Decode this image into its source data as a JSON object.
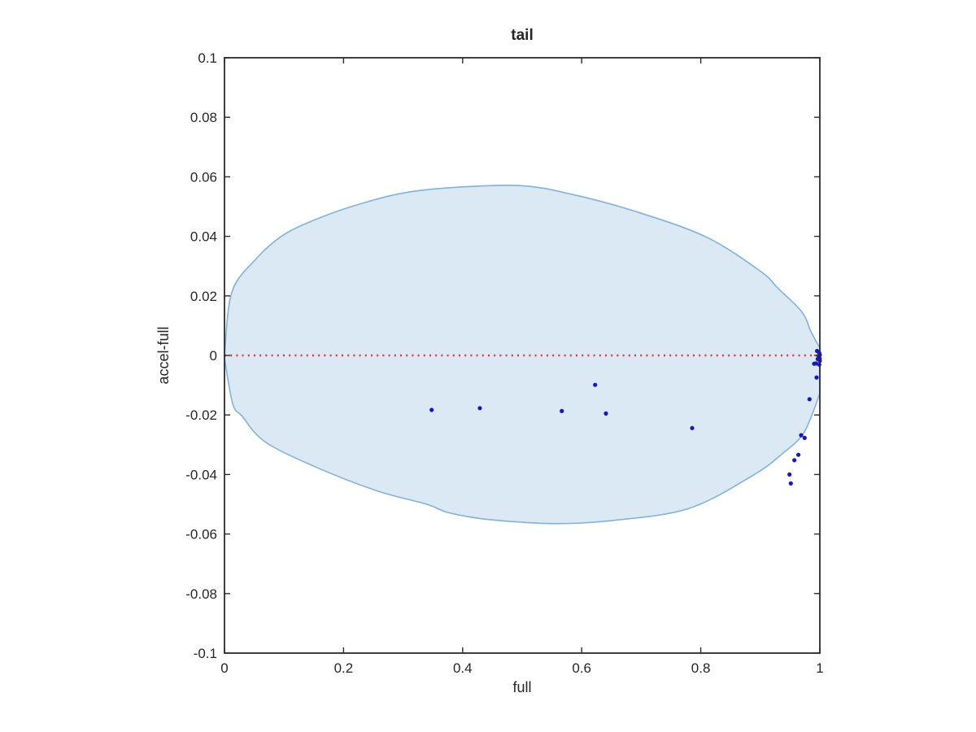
{
  "chart_data": {
    "type": "scatter",
    "title": "tail",
    "xlabel": "full",
    "ylabel": "accel-full",
    "xlim": [
      0,
      1
    ],
    "ylim": [
      -0.1,
      0.1
    ],
    "xticks": [
      0,
      0.2,
      0.4,
      0.6,
      0.8,
      1
    ],
    "xtick_labels": [
      "0",
      "0.2",
      "0.4",
      "0.6",
      "0.8",
      "1"
    ],
    "yticks": [
      0.1,
      0.08,
      0.06,
      0.04,
      0.02,
      0,
      -0.02,
      -0.04,
      -0.06,
      -0.08,
      -0.1
    ],
    "ytick_labels": [
      "0.1",
      "0.08",
      "0.06",
      "0.04",
      "0.02",
      "0",
      "-0.02",
      "-0.04",
      "-0.06",
      "-0.08",
      "-0.1"
    ],
    "grid": false,
    "box": true,
    "tick_dir": "in",
    "legend": null,
    "colors": {
      "band_fill": "#dbe9f5",
      "band_stroke": "#7fb3dc",
      "points": "#1616d2",
      "zero_line": "#e93430",
      "axis": "#2b2b2b",
      "text": "#262626",
      "background": "#ffffff"
    },
    "zero_line": {
      "style": "dotted",
      "y": 0,
      "x_range": [
        0,
        1
      ]
    },
    "band": {
      "description": "shaded confidence envelope, pinched at x=0 and x=1",
      "upper": [
        [
          0.0,
          0.0
        ],
        [
          0.012,
          0.021
        ],
        [
          0.05,
          0.0318
        ],
        [
          0.1,
          0.0406
        ],
        [
          0.17,
          0.047
        ],
        [
          0.24,
          0.0516
        ],
        [
          0.31,
          0.0549
        ],
        [
          0.4,
          0.0566
        ],
        [
          0.5,
          0.057
        ],
        [
          0.58,
          0.0543
        ],
        [
          0.69,
          0.0484
        ],
        [
          0.81,
          0.0397
        ],
        [
          0.9,
          0.0283
        ],
        [
          0.93,
          0.0225
        ],
        [
          0.97,
          0.0146
        ],
        [
          0.985,
          0.008
        ],
        [
          1.0,
          0.0025
        ]
      ],
      "lower": [
        [
          0.0,
          -0.001
        ],
        [
          0.014,
          -0.0163
        ],
        [
          0.03,
          -0.0205
        ],
        [
          0.068,
          -0.029
        ],
        [
          0.15,
          -0.0372
        ],
        [
          0.255,
          -0.0454
        ],
        [
          0.34,
          -0.05
        ],
        [
          0.374,
          -0.0527
        ],
        [
          0.43,
          -0.0548
        ],
        [
          0.49,
          -0.0559
        ],
        [
          0.56,
          -0.0565
        ],
        [
          0.65,
          -0.0555
        ],
        [
          0.78,
          -0.0514
        ],
        [
          0.89,
          -0.04
        ],
        [
          0.939,
          -0.0327
        ],
        [
          0.969,
          -0.0272
        ],
        [
          0.985,
          -0.0209
        ],
        [
          1.0,
          -0.0127
        ]
      ]
    },
    "points": [
      [
        0.348,
        -0.0183
      ],
      [
        0.429,
        -0.0177
      ],
      [
        0.5665,
        -0.0187
      ],
      [
        0.6225,
        -0.0099
      ],
      [
        0.6407,
        -0.0195
      ],
      [
        0.7855,
        -0.0244
      ],
      [
        0.9512,
        -0.043
      ],
      [
        0.949,
        -0.04
      ],
      [
        0.9572,
        -0.0352
      ],
      [
        0.964,
        -0.0334
      ],
      [
        0.9686,
        -0.0268
      ],
      [
        0.9745,
        -0.0277
      ],
      [
        0.9827,
        -0.0147
      ],
      [
        0.9904,
        -0.0028
      ],
      [
        0.9945,
        -0.0074
      ],
      [
        0.9954,
        0.0015
      ],
      [
        0.9936,
        -0.0027
      ],
      [
        0.999,
        0.0008
      ],
      [
        1.0,
        0.0002
      ],
      [
        0.9997,
        -0.001
      ],
      [
        0.9983,
        -0.0005
      ],
      [
        1.0,
        -0.0018
      ],
      [
        0.999,
        -0.0031
      ],
      [
        0.9965,
        -0.0012
      ]
    ]
  }
}
